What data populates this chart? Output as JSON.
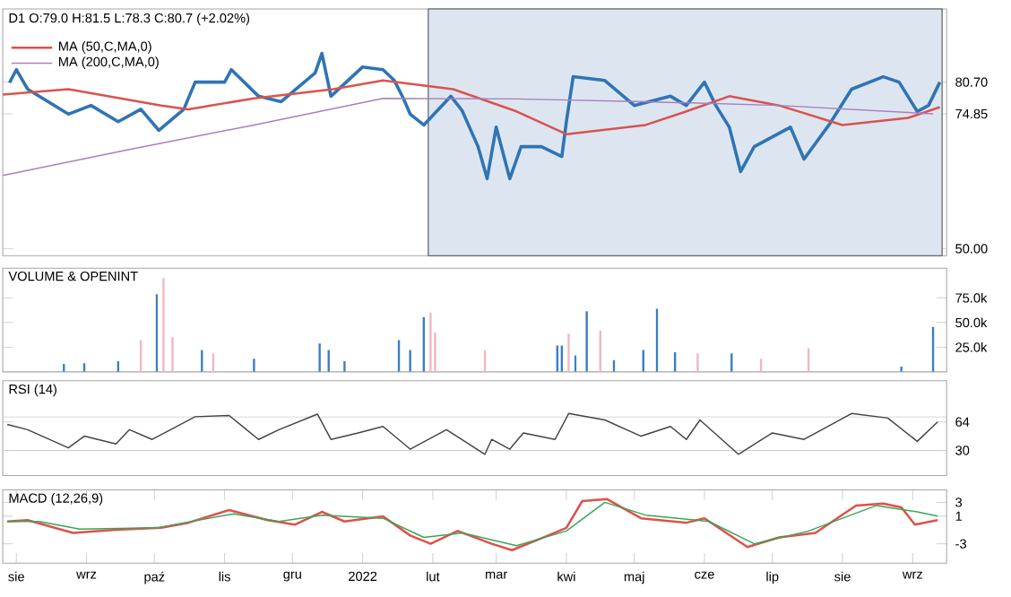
{
  "chart_data": [
    {
      "type": "line",
      "title": "D1 O:79.0 H:81.5 L:78.3 C:80.7 (+2.02%)",
      "legend": "top left",
      "tick_labels": "y",
      "marker": "none",
      "xlim": [
        "2021-07-26",
        "2022-09-16"
      ],
      "ylim": [
        48.7,
        94.2
      ],
      "yticks": [
        {
          "value": 50,
          "label": "50.00"
        },
        {
          "value": 74.85,
          "label": "74.85"
        },
        {
          "value": 80.7,
          "label": "80.70"
        }
      ],
      "bands": [
        {
          "axis": "x",
          "from": "2022-01-30",
          "to": "2022-09-14",
          "color": "#dde6f0"
        }
      ],
      "series": [
        {
          "color": "#2f74b5",
          "x": [
            "2021-07-29",
            "2021-08-01",
            "2021-08-06",
            "2021-08-24",
            "2021-09-03",
            "2021-09-15",
            "2021-09-25",
            "2021-10-03",
            "2021-10-14",
            "2021-10-19",
            "2021-11-01",
            "2021-11-04",
            "2021-11-16",
            "2021-11-26",
            "2021-12-11",
            "2021-12-14",
            "2021-12-18",
            "2022-01-01",
            "2022-01-10",
            "2022-01-15",
            "2022-01-19",
            "2022-01-22",
            "2022-01-28",
            "2022-02-09",
            "2022-02-14",
            "2022-02-21",
            "2022-02-25",
            "2022-03-01",
            "2022-03-07",
            "2022-03-12",
            "2022-03-21",
            "2022-03-30",
            "2022-04-01",
            "2022-04-04",
            "2022-04-18",
            "2022-05-01",
            "2022-05-17",
            "2022-05-24",
            "2022-06-01",
            "2022-06-06",
            "2022-06-12",
            "2022-06-17",
            "2022-06-23",
            "2022-07-09",
            "2022-07-15",
            "2022-07-26",
            "2022-08-05",
            "2022-08-19",
            "2022-08-26",
            "2022-09-03",
            "2022-09-08",
            "2022-09-13"
          ],
          "values": [
            80.6,
            83.0,
            79.4,
            74.8,
            76.4,
            73.4,
            75.7,
            71.8,
            75.7,
            80.7,
            80.7,
            83.0,
            78.1,
            77.1,
            82.4,
            86.0,
            78.1,
            83.5,
            83.0,
            81.0,
            77.7,
            74.8,
            72.8,
            78.1,
            75.4,
            68.8,
            62.9,
            72.4,
            62.9,
            68.8,
            68.8,
            67.0,
            73.4,
            81.7,
            81.0,
            76.4,
            78.1,
            76.4,
            80.7,
            76.4,
            72.4,
            64.2,
            68.8,
            72.4,
            66.5,
            72.8,
            79.4,
            81.7,
            80.7,
            75.3,
            76.4,
            80.7
          ]
        },
        {
          "name": "MA (50,C,MA,0)",
          "color": "#d9534f",
          "x": [
            "2021-07-26",
            "2021-08-24",
            "2021-10-04",
            "2021-10-16",
            "2021-11-14",
            "2021-12-19",
            "2022-01-10",
            "2022-02-10",
            "2022-03-10",
            "2022-04-01",
            "2022-05-06",
            "2022-05-24",
            "2022-06-12",
            "2022-07-04",
            "2022-08-01",
            "2022-08-30",
            "2022-09-13"
          ],
          "values": [
            78.4,
            79.4,
            76.4,
            75.7,
            77.7,
            79.4,
            81.0,
            79.4,
            75.3,
            71.1,
            72.8,
            75.3,
            78.1,
            76.4,
            72.8,
            74.1,
            76.1
          ]
        },
        {
          "name": "MA (200,C,MA,0)",
          "color": "#a77fc0",
          "x": [
            "2021-07-26",
            "2021-09-19",
            "2021-11-14",
            "2022-01-10",
            "2022-03-10",
            "2022-05-06",
            "2022-07-04",
            "2022-09-10"
          ],
          "values": [
            63.5,
            68.2,
            72.8,
            77.7,
            77.6,
            77.1,
            76.4,
            74.85
          ]
        }
      ]
    },
    {
      "type": "bar",
      "title": "VOLUME & OPENINT",
      "tick_labels": "y",
      "xlim": [
        "2021-07-26",
        "2022-09-16"
      ],
      "ylim": [
        0,
        105000
      ],
      "yticks": [
        {
          "value": 25000,
          "label": "25.0k"
        },
        {
          "value": 50000,
          "label": "50.0k"
        },
        {
          "value": 75000,
          "label": "75.0k"
        }
      ],
      "x": [
        "2021-08-22",
        "2021-08-31",
        "2021-09-15",
        "2021-09-25",
        "2021-10-02",
        "2021-10-05",
        "2021-10-09",
        "2021-10-22",
        "2021-10-27",
        "2021-11-14",
        "2021-12-13",
        "2021-12-17",
        "2021-12-24",
        "2022-01-17",
        "2022-01-22",
        "2022-01-28",
        "2022-01-31",
        "2022-02-02",
        "2022-02-24",
        "2022-03-28",
        "2022-03-30",
        "2022-04-02",
        "2022-04-05",
        "2022-04-10",
        "2022-04-16",
        "2022-04-22",
        "2022-05-05",
        "2022-05-11",
        "2022-05-19",
        "2022-05-29",
        "2022-06-13",
        "2022-06-26",
        "2022-07-17",
        "2022-08-27",
        "2022-09-10"
      ],
      "values": [
        8000,
        8700,
        10700,
        32000,
        78700,
        95000,
        35000,
        22000,
        18700,
        13300,
        28700,
        22000,
        10700,
        32000,
        22000,
        55400,
        60000,
        40000,
        22000,
        26700,
        26700,
        38700,
        16700,
        61400,
        42000,
        12000,
        22000,
        64000,
        20000,
        18700,
        18700,
        13300,
        24000,
        5300,
        45400
      ],
      "colors": [
        "#3a7fc1",
        "#3a7fc1",
        "#3a7fc1",
        "#f0b8c0",
        "#3a7fc1",
        "#f0b8c0",
        "#f0b8c0",
        "#3a7fc1",
        "#f0b8c0",
        "#3a7fc1",
        "#3a7fc1",
        "#3a7fc1",
        "#3a7fc1",
        "#3a7fc1",
        "#3a7fc1",
        "#3a7fc1",
        "#f0b8c0",
        "#f0b8c0",
        "#f0b8c0",
        "#3a7fc1",
        "#3a7fc1",
        "#f0b8c0",
        "#3a7fc1",
        "#3a7fc1",
        "#f0b8c0",
        "#3a7fc1",
        "#3a7fc1",
        "#3a7fc1",
        "#3a7fc1",
        "#f0b8c0",
        "#3a7fc1",
        "#f0b8c0",
        "#f0b8c0",
        "#3a7fc1",
        "#3a7fc1"
      ]
    },
    {
      "type": "line",
      "title": "RSI (14)",
      "tick_labels": "y",
      "marker": "none",
      "xlim": [
        "2021-07-26",
        "2022-09-16"
      ],
      "ylim": [
        0,
        113
      ],
      "yticks": [
        30,
        64
      ],
      "ref_lines": [
        {
          "axis": "y",
          "value": 30,
          "color": "#cccccc"
        },
        {
          "axis": "y",
          "value": 70,
          "color": "#cccccc"
        }
      ],
      "series": [
        {
          "color": "#444444",
          "x": [
            "2021-07-28",
            "2021-08-06",
            "2021-08-24",
            "2021-08-31",
            "2021-09-14",
            "2021-09-20",
            "2021-09-30",
            "2021-10-07",
            "2021-10-19",
            "2021-11-03",
            "2021-11-10",
            "2021-11-16",
            "2021-11-25",
            "2021-12-12",
            "2021-12-18",
            "2021-12-30",
            "2022-01-10",
            "2022-01-22",
            "2022-02-07",
            "2022-02-24",
            "2022-02-27",
            "2022-03-07",
            "2022-03-13",
            "2022-03-27",
            "2022-04-02",
            "2022-04-18",
            "2022-05-04",
            "2022-05-17",
            "2022-05-24",
            "2022-05-30",
            "2022-06-16",
            "2022-07-01",
            "2022-07-15",
            "2022-08-05",
            "2022-08-21",
            "2022-09-03",
            "2022-09-12"
          ],
          "values": [
            60.9,
            54.7,
            33.1,
            47,
            37.7,
            54.7,
            43.1,
            53.2,
            70.2,
            71.7,
            56.3,
            43.1,
            54.7,
            73.3,
            43.1,
            50.9,
            58.6,
            31.5,
            54.7,
            25.4,
            43.1,
            31.5,
            50.9,
            43.1,
            74.0,
            66.3,
            47,
            58.6,
            43.1,
            66.3,
            25.4,
            50.9,
            43.1,
            74,
            68.6,
            40.8,
            64
          ]
        }
      ]
    },
    {
      "type": "line",
      "title": "MACD (12,26,9)",
      "marker": "none",
      "xlim": [
        "2021-07-26",
        "2022-09-16"
      ],
      "ylim": [
        -5.8,
        4.8
      ],
      "yticks": [
        -3,
        1,
        3
      ],
      "xticks": [
        {
          "value": "2021-08-01",
          "label": "sie"
        },
        {
          "value": "2021-09-01",
          "label": "wrz"
        },
        {
          "value": "2021-10-01",
          "label": "paź"
        },
        {
          "value": "2021-11-01",
          "label": "lis"
        },
        {
          "value": "2021-12-01",
          "label": "gru"
        },
        {
          "value": "2022-01-01",
          "label": "2022"
        },
        {
          "value": "2022-02-01",
          "label": "lut"
        },
        {
          "value": "2022-03-01",
          "label": "mar"
        },
        {
          "value": "2022-04-01",
          "label": "kwi"
        },
        {
          "value": "2022-05-01",
          "label": "maj"
        },
        {
          "value": "2022-06-01",
          "label": "cze"
        },
        {
          "value": "2022-07-01",
          "label": "lip"
        },
        {
          "value": "2022-08-01",
          "label": "sie"
        },
        {
          "value": "2022-09-01",
          "label": "wrz"
        }
      ],
      "series": [
        {
          "color": "#e0504a",
          "x": [
            "2021-07-28",
            "2021-08-06",
            "2021-08-26",
            "2021-09-14",
            "2021-10-04",
            "2021-10-16",
            "2021-11-03",
            "2021-11-20",
            "2021-12-02",
            "2021-12-14",
            "2021-12-24",
            "2022-01-10",
            "2022-01-22",
            "2022-01-31",
            "2022-02-12",
            "2022-02-27",
            "2022-03-08",
            "2022-03-24",
            "2022-04-01",
            "2022-04-08",
            "2022-04-19",
            "2022-05-04",
            "2022-05-24",
            "2022-06-01",
            "2022-06-20",
            "2022-07-04",
            "2022-07-20",
            "2022-08-07",
            "2022-08-19",
            "2022-08-27",
            "2022-09-02",
            "2022-09-12"
          ],
          "values": [
            0.23,
            0.42,
            -1.43,
            -0.97,
            -0.69,
            0.05,
            1.89,
            0.42,
            -0.23,
            1.62,
            0.23,
            0.97,
            -1.8,
            -3.0,
            -1.15,
            -3.0,
            -3.92,
            -1.8,
            -0.69,
            3.18,
            3.46,
            0.69,
            0.05,
            0.69,
            -3.46,
            -2.07,
            -1.43,
            2.54,
            2.82,
            2.26,
            -0.23,
            0.42
          ]
        },
        {
          "color": "#3aa45a",
          "x": [
            "2021-07-28",
            "2021-08-11",
            "2021-08-29",
            "2021-10-02",
            "2021-11-05",
            "2021-11-25",
            "2021-12-14",
            "2022-01-10",
            "2022-01-28",
            "2022-02-14",
            "2022-03-10",
            "2022-04-01",
            "2022-04-18",
            "2022-05-06",
            "2022-06-03",
            "2022-06-23",
            "2022-07-17",
            "2022-08-16",
            "2022-09-03",
            "2022-09-12"
          ],
          "values": [
            0.23,
            0.23,
            -0.87,
            -0.69,
            1.34,
            0.23,
            1.15,
            0.69,
            -2.07,
            -1.43,
            -3.27,
            -1.15,
            3.0,
            1.15,
            0.23,
            -3.0,
            -1.15,
            2.54,
            1.62,
            1
          ]
        }
      ]
    }
  ]
}
